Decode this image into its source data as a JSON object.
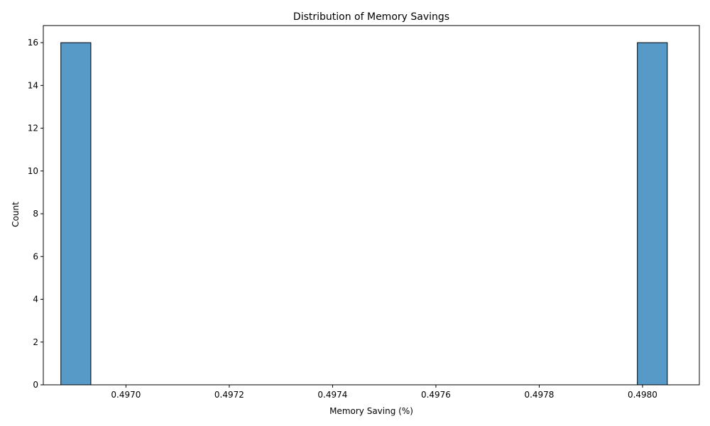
{
  "chart_data": {
    "type": "bar",
    "title": "Distribution of Memory Savings",
    "xlabel": "Memory Saving (%)",
    "ylabel": "Count",
    "bar_color": "#5799c7",
    "edge_color": "#000000",
    "xlim": [
      0.49684,
      0.49811
    ],
    "ylim": [
      0,
      16.8
    ],
    "x_ticks": [
      0.497,
      0.4972,
      0.4974,
      0.4976,
      0.4978,
      0.498
    ],
    "x_tick_labels": [
      "0.4970",
      "0.4972",
      "0.4974",
      "0.4976",
      "0.4978",
      "0.4980"
    ],
    "y_ticks": [
      0,
      2,
      4,
      6,
      8,
      10,
      12,
      14,
      16
    ],
    "y_tick_labels": [
      "0",
      "2",
      "4",
      "6",
      "8",
      "10",
      "12",
      "14",
      "16"
    ],
    "bins": [
      {
        "x0": 0.496874,
        "x1": 0.496932,
        "count": 16
      },
      {
        "x0": 0.49799,
        "x1": 0.498048,
        "count": 16
      }
    ],
    "grid": false,
    "legend": "none"
  }
}
